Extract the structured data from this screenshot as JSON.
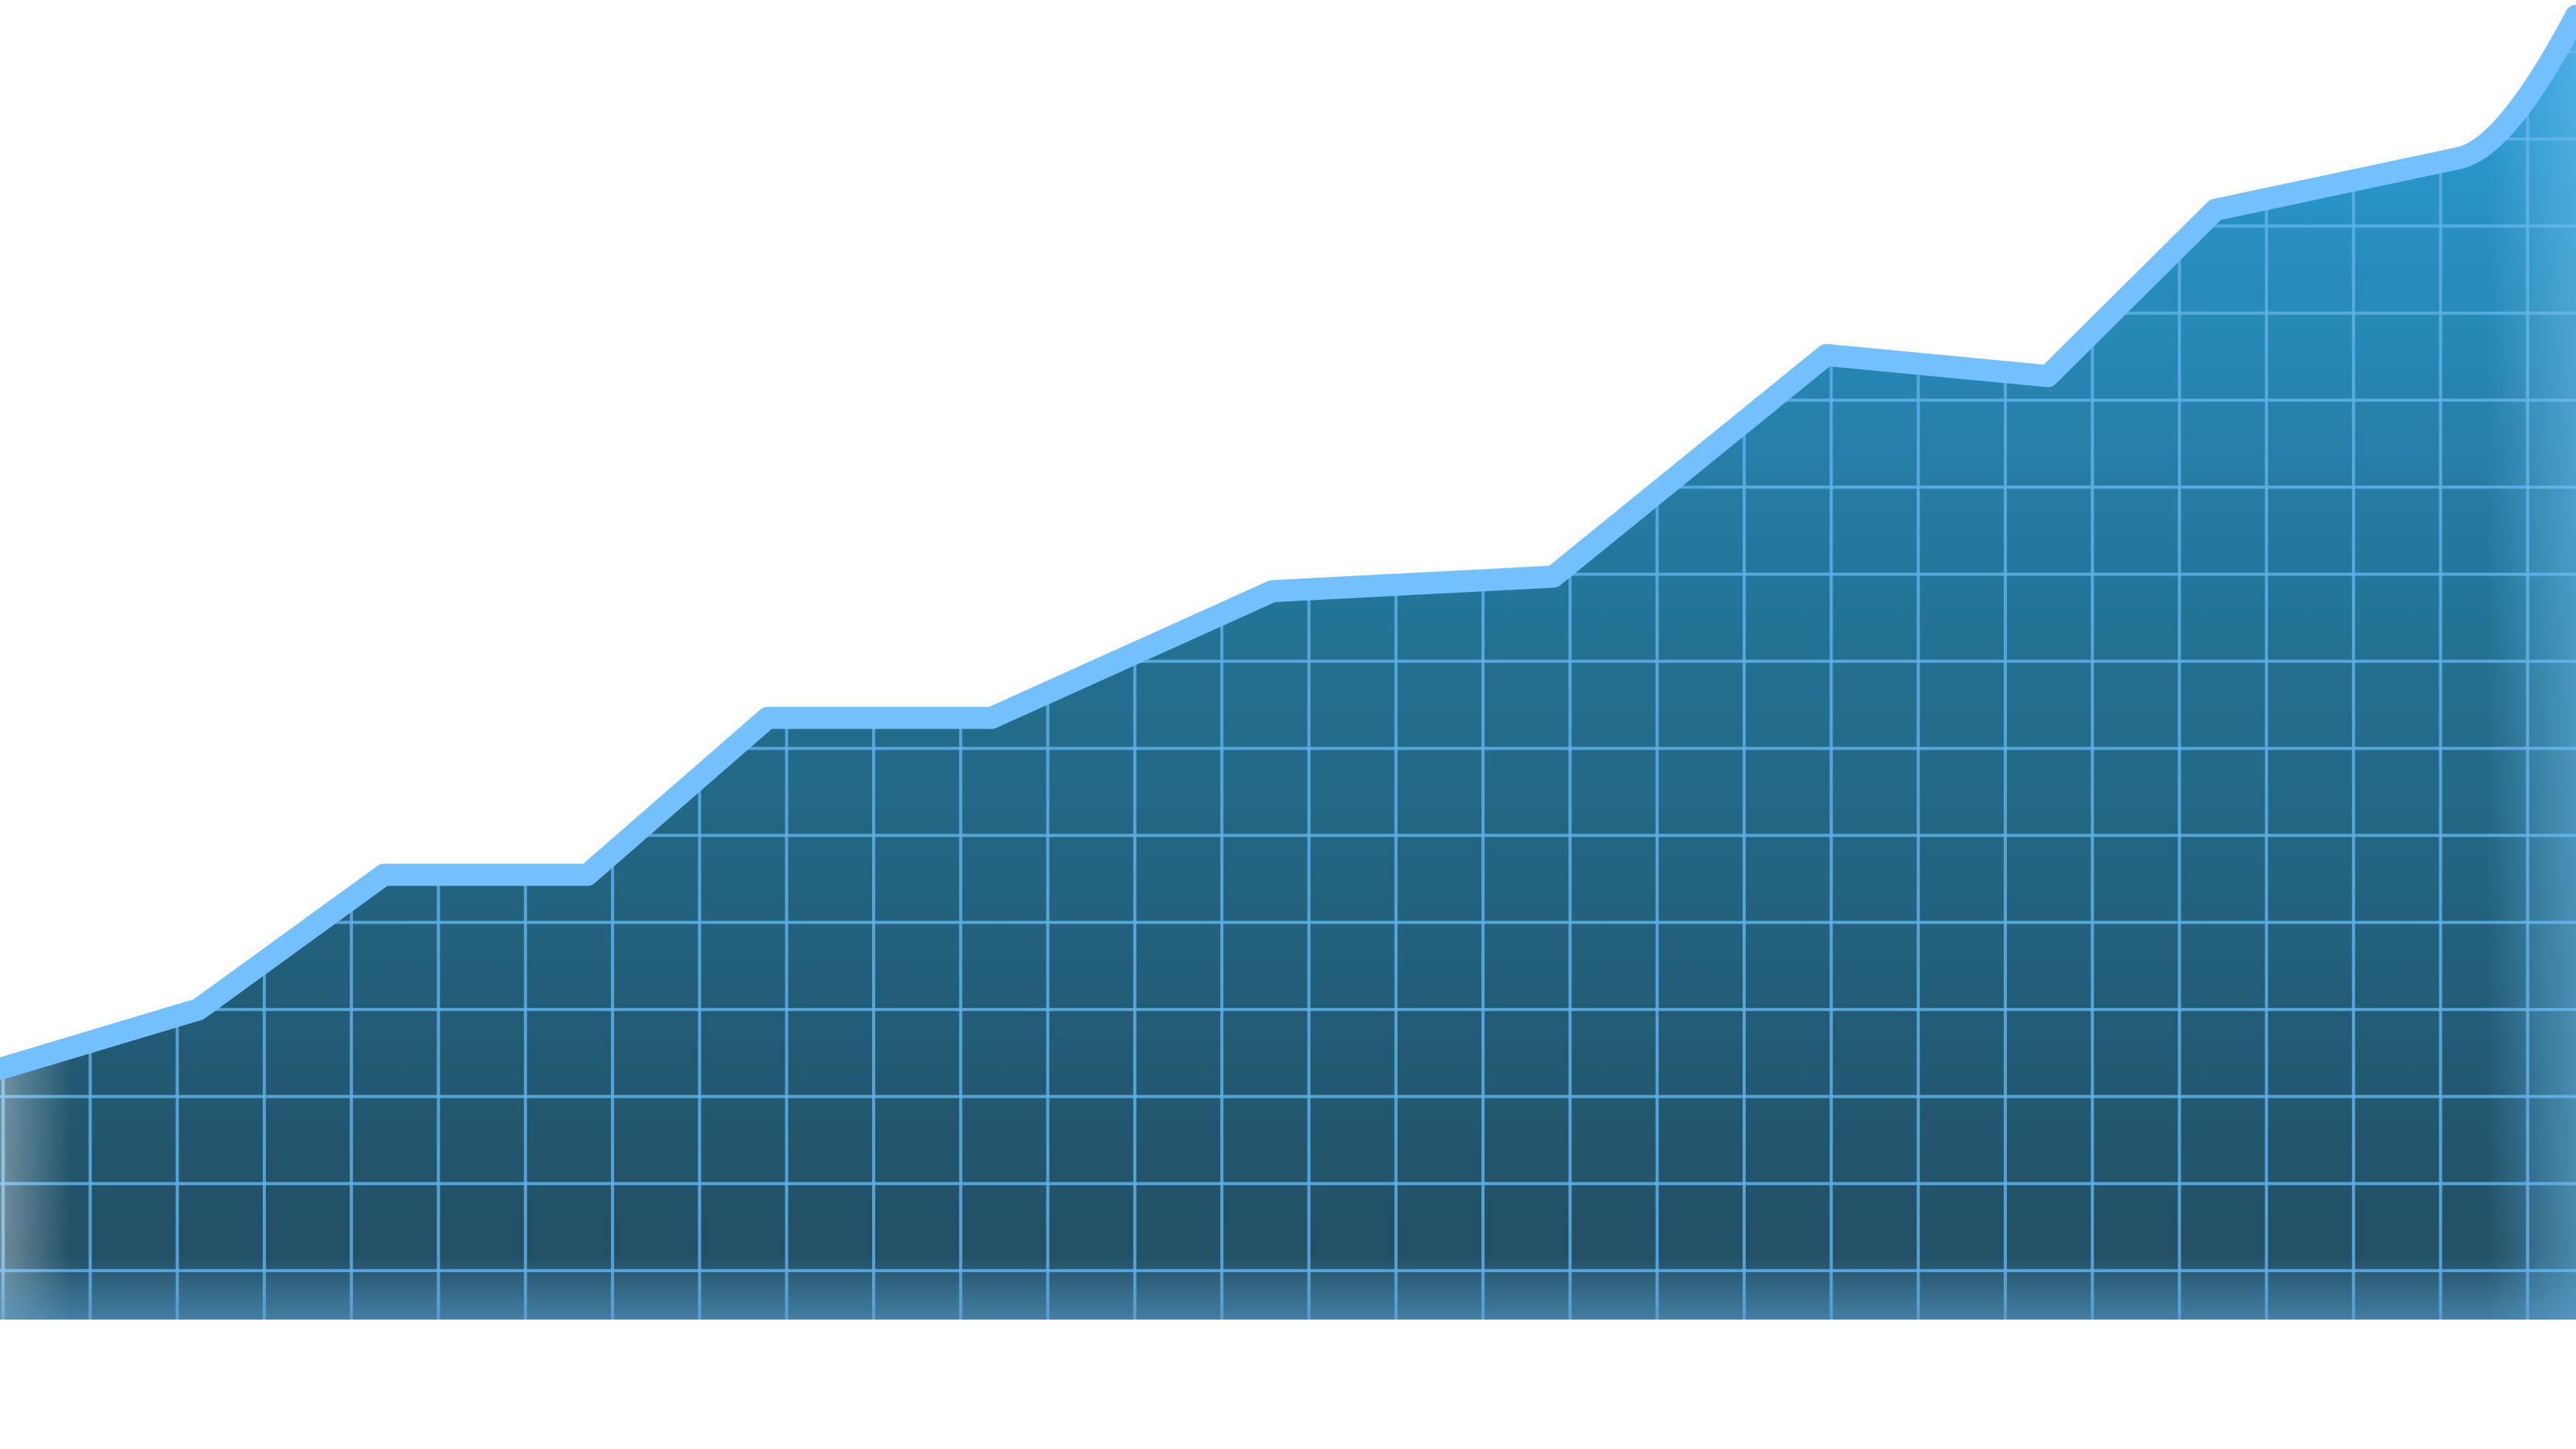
{
  "chart_data": {
    "type": "area",
    "title": "",
    "xlabel": "",
    "ylabel": "",
    "xlim": [
      0,
      100
    ],
    "ylim": [
      0,
      100
    ],
    "grid": true,
    "legend": "none",
    "x": [
      0,
      7.7,
      14.9,
      22.8,
      29.8,
      38.5,
      49.4,
      60.3,
      70.9,
      79.5,
      86.0,
      95.4,
      100
    ],
    "values": [
      19.0,
      23.5,
      33.7,
      33.7,
      45.6,
      45.6,
      55.2,
      56.3,
      73.1,
      71.5,
      84.1,
      88.0,
      98.8
    ],
    "colors": {
      "line": "#74c0ff",
      "fill_top": "#2a9bd0",
      "fill_bottom": "#234f63",
      "grid": "#5fb0e8"
    }
  }
}
